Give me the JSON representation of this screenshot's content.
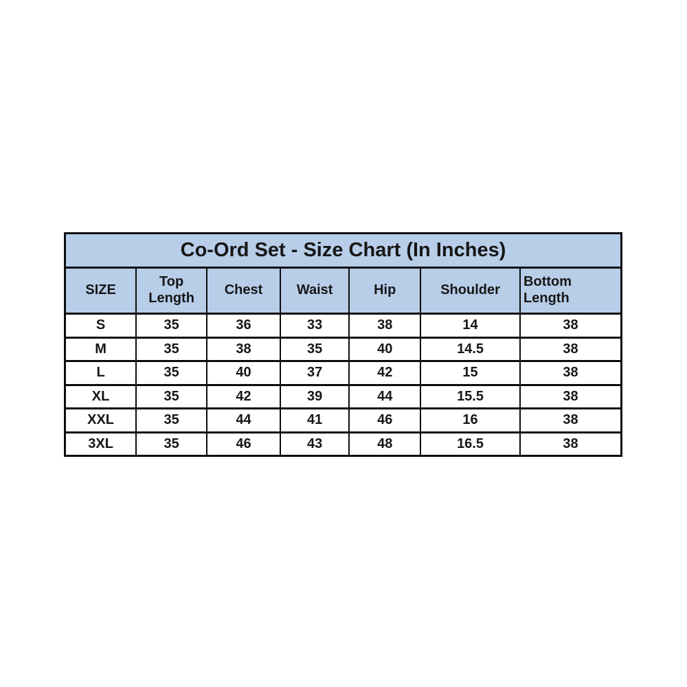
{
  "colors": {
    "header_bg": "#b7cde8",
    "row_bg": "#ffffff",
    "border": "#0c0c0c",
    "text": "#161616",
    "page_bg": "#ffffff"
  },
  "chart_data": {
    "type": "table",
    "title": "Co-Ord Set - Size Chart (In Inches)",
    "columns": [
      "SIZE",
      "Top Length",
      "Chest",
      "Waist",
      "Hip",
      "Shoulder",
      "Bottom Length"
    ],
    "rows": [
      {
        "size": "S",
        "values": [
          35,
          36,
          33,
          38,
          14,
          38
        ]
      },
      {
        "size": "M",
        "values": [
          35,
          38,
          35,
          40,
          14.5,
          38
        ]
      },
      {
        "size": "L",
        "values": [
          35,
          40,
          37,
          42,
          15,
          38
        ]
      },
      {
        "size": "XL",
        "values": [
          35,
          42,
          39,
          44,
          15.5,
          38
        ]
      },
      {
        "size": "XXL",
        "values": [
          35,
          44,
          41,
          46,
          16,
          38
        ]
      },
      {
        "size": "3XL",
        "values": [
          35,
          46,
          43,
          48,
          16.5,
          38
        ]
      }
    ],
    "layout_hints": {
      "units": "inches",
      "header_rows_background": "light blue",
      "data_rows_background": "white",
      "grid": "on"
    }
  }
}
